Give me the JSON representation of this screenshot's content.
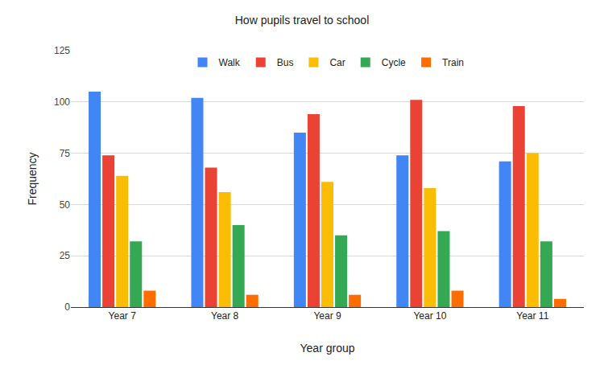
{
  "chart_data": {
    "type": "bar",
    "title": "How pupils travel to school",
    "x_label": "Year group",
    "y_label": "Frequency",
    "categories": [
      "Year 7",
      "Year 8",
      "Year 9",
      "Year 10",
      "Year 11"
    ],
    "series": [
      {
        "name": "Walk",
        "color": "#4285f4",
        "values": [
          105,
          102,
          85,
          74,
          71
        ]
      },
      {
        "name": "Bus",
        "color": "#ea4335",
        "values": [
          74,
          68,
          94,
          101,
          98
        ]
      },
      {
        "name": "Car",
        "color": "#fbbc04",
        "values": [
          64,
          56,
          61,
          58,
          75
        ]
      },
      {
        "name": "Cycle",
        "color": "#34a853",
        "values": [
          32,
          40,
          35,
          37,
          32
        ]
      },
      {
        "name": "Train",
        "color": "#ff6d01",
        "values": [
          8,
          6,
          6,
          8,
          4
        ]
      }
    ],
    "ylim": [
      0,
      125
    ],
    "yticks": [
      0,
      25,
      50,
      75,
      100,
      125
    ],
    "grid": true,
    "legend": "top"
  }
}
